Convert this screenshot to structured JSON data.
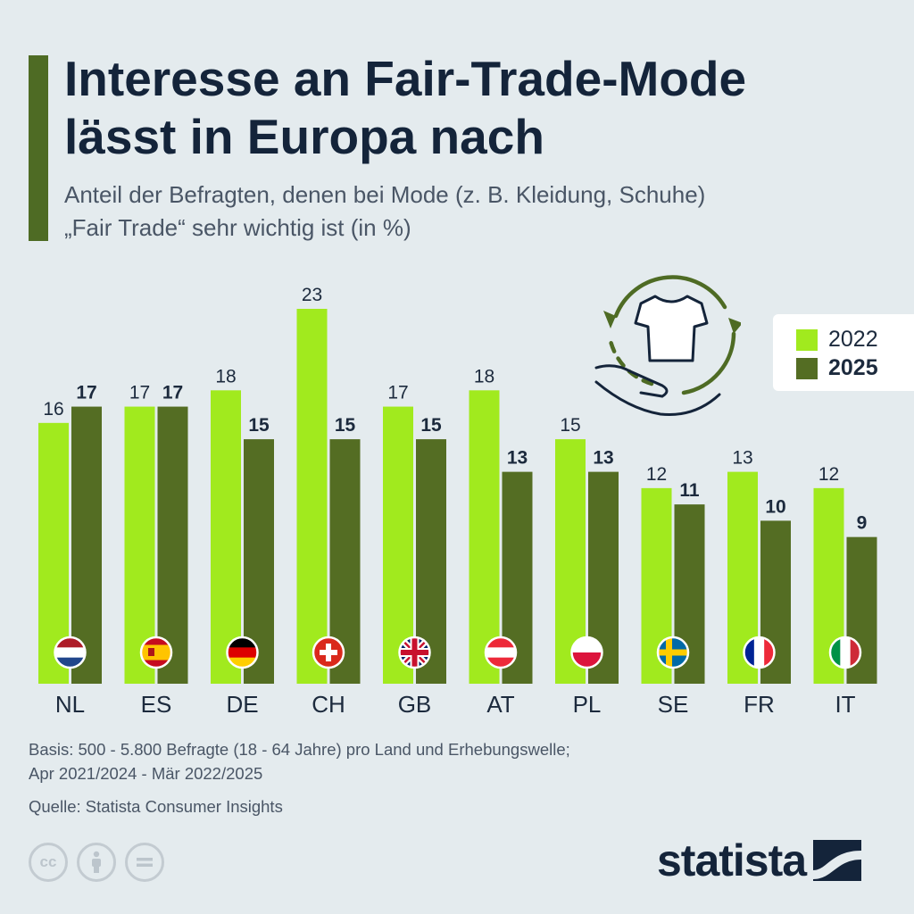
{
  "header": {
    "title_line1": "Interesse an Fair-Trade-Mode",
    "title_line2": "lässt in Europa nach",
    "subtitle_line1": "Anteil der Befragten, denen bei Mode (z. B. Kleidung, Schuhe)",
    "subtitle_line2": "„Fair Trade“ sehr wichtig ist (in %)"
  },
  "colors": {
    "series_2022": "#a1ea1e",
    "series_2025": "#546d23",
    "accent": "#4e6b24",
    "text": "#1c2a3d",
    "background": "#e4ebee"
  },
  "chart_data": {
    "type": "bar",
    "categories": [
      "NL",
      "ES",
      "DE",
      "CH",
      "GB",
      "AT",
      "PL",
      "SE",
      "FR",
      "IT"
    ],
    "flags": [
      "flag-nl-icon",
      "flag-es-icon",
      "flag-de-icon",
      "flag-ch-icon",
      "flag-gb-icon",
      "flag-at-icon",
      "flag-pl-icon",
      "flag-se-icon",
      "flag-fr-icon",
      "flag-it-icon"
    ],
    "series": [
      {
        "name": "2022",
        "values": [
          16,
          17,
          18,
          23,
          17,
          18,
          15,
          12,
          13,
          12
        ]
      },
      {
        "name": "2025",
        "values": [
          17,
          17,
          15,
          15,
          15,
          13,
          13,
          11,
          10,
          9
        ]
      }
    ],
    "title": "Interesse an Fair-Trade-Mode lässt in Europa nach",
    "xlabel": "",
    "ylabel": "",
    "ylim": [
      0,
      23
    ],
    "grid": false,
    "legend": "top-right"
  },
  "legend": {
    "label_2022": "2022",
    "label_2025": "2025"
  },
  "footer": {
    "basis_line1": "Basis: 500 - 5.800 Befragte (18 - 64 Jahre) pro Land und Erhebungswelle;",
    "basis_line2": "Apr 2021/2024 - Mär 2022/2025",
    "source": "Quelle: Statista Consumer Insights"
  },
  "license_icons": [
    "cc-icon",
    "attribution-icon",
    "no-derivatives-icon"
  ],
  "logo": {
    "text": "statista"
  }
}
